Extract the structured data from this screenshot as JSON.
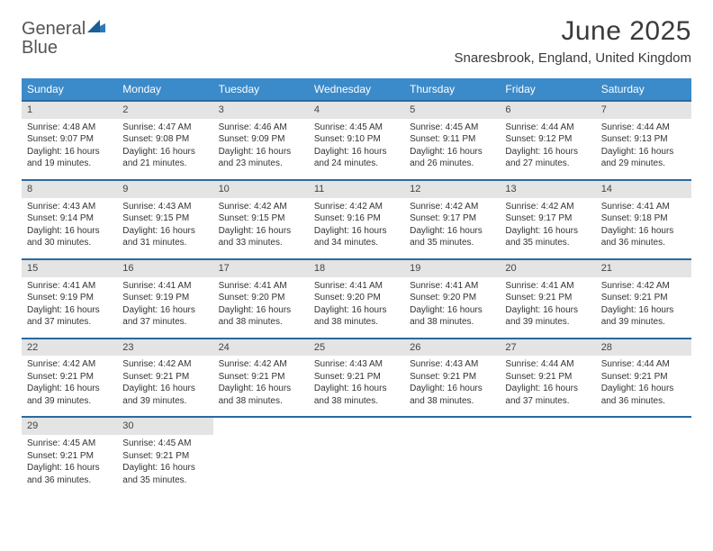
{
  "logo": {
    "word1": "General",
    "word2": "Blue"
  },
  "title": "June 2025",
  "location": "Snaresbrook, England, United Kingdom",
  "colors": {
    "header_bg": "#3b8aca",
    "header_text": "#ffffff",
    "row_border": "#2a6aa0",
    "daynum_bg": "#e4e4e4",
    "text": "#333333",
    "logo_gray": "#555555",
    "logo_blue": "#2a7ab9"
  },
  "day_names": [
    "Sunday",
    "Monday",
    "Tuesday",
    "Wednesday",
    "Thursday",
    "Friday",
    "Saturday"
  ],
  "weeks": [
    [
      {
        "n": "1",
        "sr": "Sunrise: 4:48 AM",
        "ss": "Sunset: 9:07 PM",
        "d1": "Daylight: 16 hours",
        "d2": "and 19 minutes."
      },
      {
        "n": "2",
        "sr": "Sunrise: 4:47 AM",
        "ss": "Sunset: 9:08 PM",
        "d1": "Daylight: 16 hours",
        "d2": "and 21 minutes."
      },
      {
        "n": "3",
        "sr": "Sunrise: 4:46 AM",
        "ss": "Sunset: 9:09 PM",
        "d1": "Daylight: 16 hours",
        "d2": "and 23 minutes."
      },
      {
        "n": "4",
        "sr": "Sunrise: 4:45 AM",
        "ss": "Sunset: 9:10 PM",
        "d1": "Daylight: 16 hours",
        "d2": "and 24 minutes."
      },
      {
        "n": "5",
        "sr": "Sunrise: 4:45 AM",
        "ss": "Sunset: 9:11 PM",
        "d1": "Daylight: 16 hours",
        "d2": "and 26 minutes."
      },
      {
        "n": "6",
        "sr": "Sunrise: 4:44 AM",
        "ss": "Sunset: 9:12 PM",
        "d1": "Daylight: 16 hours",
        "d2": "and 27 minutes."
      },
      {
        "n": "7",
        "sr": "Sunrise: 4:44 AM",
        "ss": "Sunset: 9:13 PM",
        "d1": "Daylight: 16 hours",
        "d2": "and 29 minutes."
      }
    ],
    [
      {
        "n": "8",
        "sr": "Sunrise: 4:43 AM",
        "ss": "Sunset: 9:14 PM",
        "d1": "Daylight: 16 hours",
        "d2": "and 30 minutes."
      },
      {
        "n": "9",
        "sr": "Sunrise: 4:43 AM",
        "ss": "Sunset: 9:15 PM",
        "d1": "Daylight: 16 hours",
        "d2": "and 31 minutes."
      },
      {
        "n": "10",
        "sr": "Sunrise: 4:42 AM",
        "ss": "Sunset: 9:15 PM",
        "d1": "Daylight: 16 hours",
        "d2": "and 33 minutes."
      },
      {
        "n": "11",
        "sr": "Sunrise: 4:42 AM",
        "ss": "Sunset: 9:16 PM",
        "d1": "Daylight: 16 hours",
        "d2": "and 34 minutes."
      },
      {
        "n": "12",
        "sr": "Sunrise: 4:42 AM",
        "ss": "Sunset: 9:17 PM",
        "d1": "Daylight: 16 hours",
        "d2": "and 35 minutes."
      },
      {
        "n": "13",
        "sr": "Sunrise: 4:42 AM",
        "ss": "Sunset: 9:17 PM",
        "d1": "Daylight: 16 hours",
        "d2": "and 35 minutes."
      },
      {
        "n": "14",
        "sr": "Sunrise: 4:41 AM",
        "ss": "Sunset: 9:18 PM",
        "d1": "Daylight: 16 hours",
        "d2": "and 36 minutes."
      }
    ],
    [
      {
        "n": "15",
        "sr": "Sunrise: 4:41 AM",
        "ss": "Sunset: 9:19 PM",
        "d1": "Daylight: 16 hours",
        "d2": "and 37 minutes."
      },
      {
        "n": "16",
        "sr": "Sunrise: 4:41 AM",
        "ss": "Sunset: 9:19 PM",
        "d1": "Daylight: 16 hours",
        "d2": "and 37 minutes."
      },
      {
        "n": "17",
        "sr": "Sunrise: 4:41 AM",
        "ss": "Sunset: 9:20 PM",
        "d1": "Daylight: 16 hours",
        "d2": "and 38 minutes."
      },
      {
        "n": "18",
        "sr": "Sunrise: 4:41 AM",
        "ss": "Sunset: 9:20 PM",
        "d1": "Daylight: 16 hours",
        "d2": "and 38 minutes."
      },
      {
        "n": "19",
        "sr": "Sunrise: 4:41 AM",
        "ss": "Sunset: 9:20 PM",
        "d1": "Daylight: 16 hours",
        "d2": "and 38 minutes."
      },
      {
        "n": "20",
        "sr": "Sunrise: 4:41 AM",
        "ss": "Sunset: 9:21 PM",
        "d1": "Daylight: 16 hours",
        "d2": "and 39 minutes."
      },
      {
        "n": "21",
        "sr": "Sunrise: 4:42 AM",
        "ss": "Sunset: 9:21 PM",
        "d1": "Daylight: 16 hours",
        "d2": "and 39 minutes."
      }
    ],
    [
      {
        "n": "22",
        "sr": "Sunrise: 4:42 AM",
        "ss": "Sunset: 9:21 PM",
        "d1": "Daylight: 16 hours",
        "d2": "and 39 minutes."
      },
      {
        "n": "23",
        "sr": "Sunrise: 4:42 AM",
        "ss": "Sunset: 9:21 PM",
        "d1": "Daylight: 16 hours",
        "d2": "and 39 minutes."
      },
      {
        "n": "24",
        "sr": "Sunrise: 4:42 AM",
        "ss": "Sunset: 9:21 PM",
        "d1": "Daylight: 16 hours",
        "d2": "and 38 minutes."
      },
      {
        "n": "25",
        "sr": "Sunrise: 4:43 AM",
        "ss": "Sunset: 9:21 PM",
        "d1": "Daylight: 16 hours",
        "d2": "and 38 minutes."
      },
      {
        "n": "26",
        "sr": "Sunrise: 4:43 AM",
        "ss": "Sunset: 9:21 PM",
        "d1": "Daylight: 16 hours",
        "d2": "and 38 minutes."
      },
      {
        "n": "27",
        "sr": "Sunrise: 4:44 AM",
        "ss": "Sunset: 9:21 PM",
        "d1": "Daylight: 16 hours",
        "d2": "and 37 minutes."
      },
      {
        "n": "28",
        "sr": "Sunrise: 4:44 AM",
        "ss": "Sunset: 9:21 PM",
        "d1": "Daylight: 16 hours",
        "d2": "and 36 minutes."
      }
    ],
    [
      {
        "n": "29",
        "sr": "Sunrise: 4:45 AM",
        "ss": "Sunset: 9:21 PM",
        "d1": "Daylight: 16 hours",
        "d2": "and 36 minutes."
      },
      {
        "n": "30",
        "sr": "Sunrise: 4:45 AM",
        "ss": "Sunset: 9:21 PM",
        "d1": "Daylight: 16 hours",
        "d2": "and 35 minutes."
      },
      null,
      null,
      null,
      null,
      null
    ]
  ]
}
